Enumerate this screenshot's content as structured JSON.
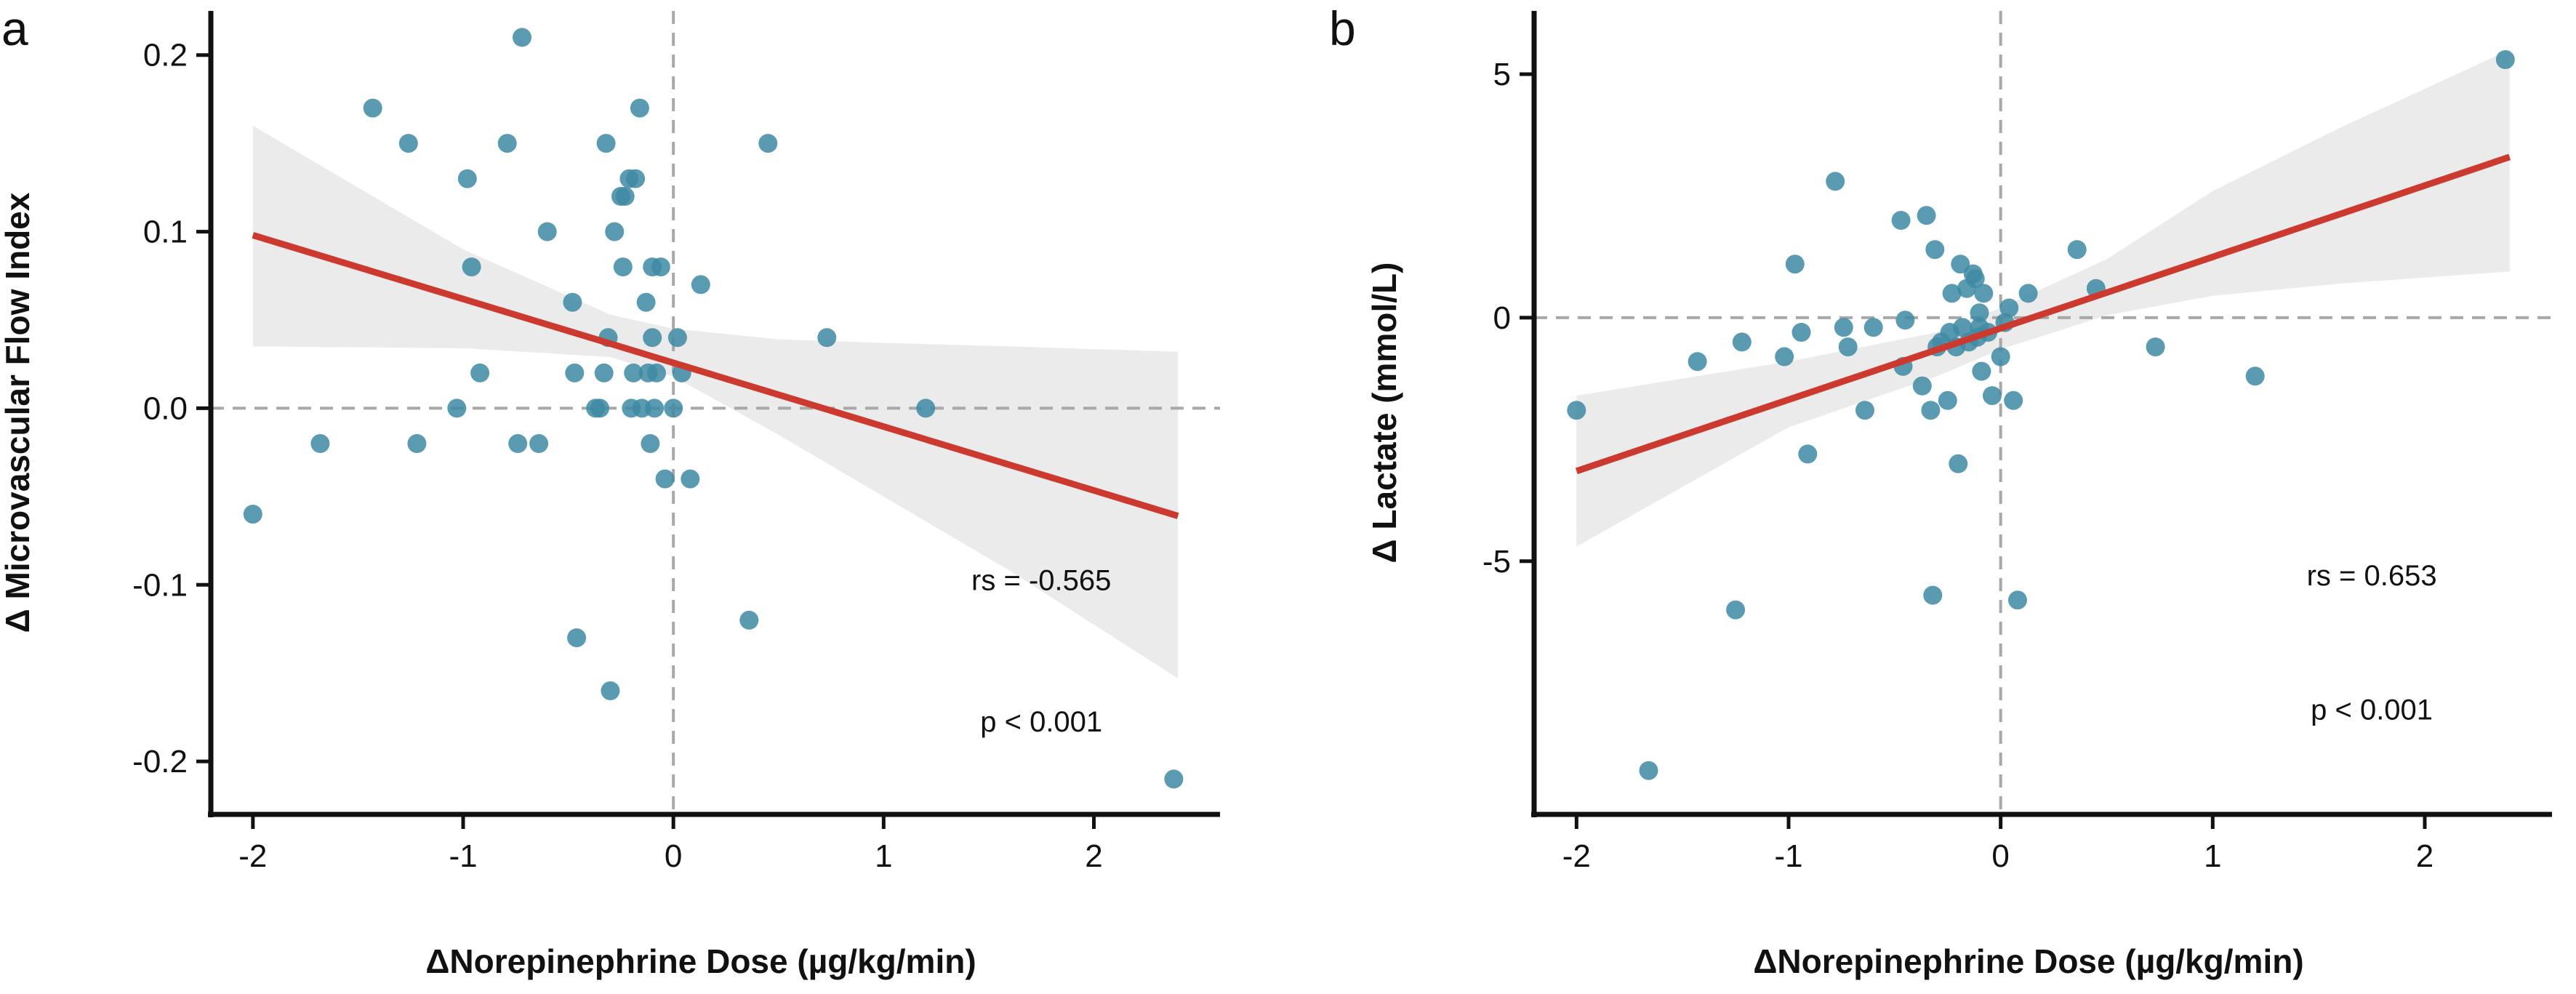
{
  "chart_data": [
    {
      "type": "scatter",
      "panel_label": "a",
      "xlabel": "ΔNorepinephrine Dose (µg/kg/min)",
      "ylabel": "Δ Microvascular Flow Index",
      "xlim": [
        -2.2,
        2.6
      ],
      "ylim": [
        -0.23,
        0.225
      ],
      "x_ticks": [
        -2,
        -1,
        0,
        1,
        2
      ],
      "x_tick_labels": [
        "-2",
        "-1",
        "0",
        "1",
        "2"
      ],
      "y_ticks": [
        -0.2,
        -0.1,
        0.0,
        0.1,
        0.2
      ],
      "y_tick_labels": [
        "-0.2",
        "-0.1",
        "0.0",
        "0.1",
        "0.2"
      ],
      "reference_lines": {
        "x": 0,
        "y": 0,
        "style": "dashed"
      },
      "point_color": "#3e8aa3",
      "fit_color": "#cc3a2f",
      "band_color": "#ebebeb",
      "fit_line": {
        "x": [
          -2.0,
          2.4
        ],
        "y": [
          0.098,
          -0.061
        ]
      },
      "confidence_band": {
        "x": [
          -2.0,
          -1.0,
          -0.3,
          0.0,
          0.5,
          1.0,
          1.6,
          2.4
        ],
        "lower": [
          0.035,
          0.034,
          0.029,
          0.018,
          -0.015,
          -0.05,
          -0.092,
          -0.153
        ],
        "upper": [
          0.16,
          0.09,
          0.053,
          0.045,
          0.039,
          0.037,
          0.035,
          0.032
        ]
      },
      "points": [
        {
          "x": -2.0,
          "y": -0.06
        },
        {
          "x": -1.68,
          "y": -0.02
        },
        {
          "x": -1.43,
          "y": 0.17
        },
        {
          "x": -1.26,
          "y": 0.15
        },
        {
          "x": -1.22,
          "y": -0.02
        },
        {
          "x": -1.03,
          "y": 0.0
        },
        {
          "x": -0.98,
          "y": 0.13
        },
        {
          "x": -0.96,
          "y": 0.08
        },
        {
          "x": -0.92,
          "y": 0.02
        },
        {
          "x": -0.79,
          "y": 0.15
        },
        {
          "x": -0.74,
          "y": -0.02
        },
        {
          "x": -0.72,
          "y": 0.21
        },
        {
          "x": -0.64,
          "y": -0.02
        },
        {
          "x": -0.6,
          "y": 0.1
        },
        {
          "x": -0.48,
          "y": 0.06
        },
        {
          "x": -0.47,
          "y": 0.02
        },
        {
          "x": -0.46,
          "y": -0.13
        },
        {
          "x": -0.37,
          "y": 0.0
        },
        {
          "x": -0.35,
          "y": 0.0
        },
        {
          "x": -0.33,
          "y": 0.02
        },
        {
          "x": -0.32,
          "y": 0.15
        },
        {
          "x": -0.31,
          "y": 0.04
        },
        {
          "x": -0.3,
          "y": -0.16
        },
        {
          "x": -0.28,
          "y": 0.1
        },
        {
          "x": -0.25,
          "y": 0.12
        },
        {
          "x": -0.24,
          "y": 0.08
        },
        {
          "x": -0.23,
          "y": 0.12
        },
        {
          "x": -0.21,
          "y": 0.13
        },
        {
          "x": -0.2,
          "y": 0.0
        },
        {
          "x": -0.19,
          "y": 0.02
        },
        {
          "x": -0.18,
          "y": 0.13
        },
        {
          "x": -0.16,
          "y": 0.17
        },
        {
          "x": -0.15,
          "y": 0.0
        },
        {
          "x": -0.13,
          "y": 0.06
        },
        {
          "x": -0.12,
          "y": 0.02
        },
        {
          "x": -0.11,
          "y": -0.02
        },
        {
          "x": -0.1,
          "y": 0.08
        },
        {
          "x": -0.1,
          "y": 0.04
        },
        {
          "x": -0.09,
          "y": 0.0
        },
        {
          "x": -0.08,
          "y": 0.02
        },
        {
          "x": -0.06,
          "y": 0.08
        },
        {
          "x": -0.04,
          "y": -0.04
        },
        {
          "x": 0.0,
          "y": 0.0
        },
        {
          "x": 0.02,
          "y": 0.04
        },
        {
          "x": 0.04,
          "y": 0.02
        },
        {
          "x": 0.08,
          "y": -0.04
        },
        {
          "x": 0.13,
          "y": 0.07
        },
        {
          "x": 0.36,
          "y": -0.12
        },
        {
          "x": 0.45,
          "y": 0.15
        },
        {
          "x": 0.73,
          "y": 0.04
        },
        {
          "x": 1.2,
          "y": 0.0
        },
        {
          "x": 2.38,
          "y": -0.21
        }
      ],
      "annotations": [
        {
          "text": "rs = -0.565",
          "x": 1.75,
          "y": -0.103
        },
        {
          "text": "p < 0.001",
          "x": 1.75,
          "y": -0.183
        }
      ]
    },
    {
      "type": "scatter",
      "panel_label": "b",
      "xlabel": "ΔNorepinephrine Dose (µg/kg/min)",
      "ylabel": "Δ Lactate (mmol/L)",
      "xlim": [
        -2.2,
        2.6
      ],
      "ylim": [
        -10.2,
        6.3
      ],
      "x_ticks": [
        -2,
        -1,
        0,
        1,
        2
      ],
      "x_tick_labels": [
        "-2",
        "-1",
        "0",
        "1",
        "2"
      ],
      "y_ticks": [
        -5,
        0,
        5
      ],
      "y_tick_labels": [
        "-5",
        "0",
        "5"
      ],
      "reference_lines": {
        "x": 0,
        "y": 0,
        "style": "dashed"
      },
      "point_color": "#3e8aa3",
      "fit_color": "#cc3a2f",
      "band_color": "#ebebeb",
      "fit_line": {
        "x": [
          -2.0,
          2.4
        ],
        "y": [
          -3.15,
          3.3
        ]
      },
      "confidence_band": {
        "x": [
          -2.0,
          -1.0,
          -0.3,
          0.0,
          0.5,
          1.0,
          1.6,
          2.4
        ],
        "lower": [
          -4.7,
          -2.25,
          -1.2,
          -0.65,
          0.05,
          0.45,
          0.7,
          0.95
        ],
        "upper": [
          -1.6,
          -0.9,
          -0.3,
          0.2,
          1.2,
          2.6,
          3.9,
          5.5
        ]
      },
      "points": [
        {
          "x": -2.0,
          "y": -1.9
        },
        {
          "x": -1.66,
          "y": -9.3
        },
        {
          "x": -1.43,
          "y": -0.9
        },
        {
          "x": -1.25,
          "y": -6.0
        },
        {
          "x": -1.22,
          "y": -0.5
        },
        {
          "x": -1.02,
          "y": -0.8
        },
        {
          "x": -0.97,
          "y": 1.1
        },
        {
          "x": -0.94,
          "y": -0.3
        },
        {
          "x": -0.91,
          "y": -2.8
        },
        {
          "x": -0.78,
          "y": 2.8
        },
        {
          "x": -0.74,
          "y": -0.2
        },
        {
          "x": -0.72,
          "y": -0.6
        },
        {
          "x": -0.64,
          "y": -1.9
        },
        {
          "x": -0.6,
          "y": -0.2
        },
        {
          "x": -0.47,
          "y": 2.0
        },
        {
          "x": -0.46,
          "y": -1.0
        },
        {
          "x": -0.45,
          "y": -0.05
        },
        {
          "x": -0.37,
          "y": -1.4
        },
        {
          "x": -0.35,
          "y": 2.1
        },
        {
          "x": -0.33,
          "y": -1.9
        },
        {
          "x": -0.32,
          "y": -5.7
        },
        {
          "x": -0.31,
          "y": 1.4
        },
        {
          "x": -0.3,
          "y": -0.6
        },
        {
          "x": -0.28,
          "y": -0.5
        },
        {
          "x": -0.25,
          "y": -1.7
        },
        {
          "x": -0.24,
          "y": -0.3
        },
        {
          "x": -0.23,
          "y": 0.5
        },
        {
          "x": -0.21,
          "y": -0.6
        },
        {
          "x": -0.2,
          "y": -3.0
        },
        {
          "x": -0.19,
          "y": 1.1
        },
        {
          "x": -0.18,
          "y": -0.2
        },
        {
          "x": -0.16,
          "y": 0.6
        },
        {
          "x": -0.15,
          "y": -0.5
        },
        {
          "x": -0.13,
          "y": 0.9
        },
        {
          "x": -0.12,
          "y": 0.8
        },
        {
          "x": -0.11,
          "y": -0.4
        },
        {
          "x": -0.1,
          "y": -0.2
        },
        {
          "x": -0.1,
          "y": 0.1
        },
        {
          "x": -0.09,
          "y": -1.1
        },
        {
          "x": -0.08,
          "y": 0.5
        },
        {
          "x": -0.06,
          "y": -0.3
        },
        {
          "x": -0.04,
          "y": -1.6
        },
        {
          "x": 0.0,
          "y": -0.8
        },
        {
          "x": 0.02,
          "y": -0.1
        },
        {
          "x": 0.04,
          "y": 0.2
        },
        {
          "x": 0.06,
          "y": -1.7
        },
        {
          "x": 0.08,
          "y": -5.8
        },
        {
          "x": 0.13,
          "y": 0.5
        },
        {
          "x": 0.36,
          "y": 1.4
        },
        {
          "x": 0.45,
          "y": 0.6
        },
        {
          "x": 0.73,
          "y": -0.6
        },
        {
          "x": 1.2,
          "y": -1.2
        },
        {
          "x": 2.38,
          "y": 5.3
        }
      ],
      "annotations": [
        {
          "text": "rs = 0.653",
          "x": 1.75,
          "y": -5.5
        },
        {
          "text": "p < 0.001",
          "x": 1.75,
          "y": -8.25
        }
      ]
    }
  ]
}
